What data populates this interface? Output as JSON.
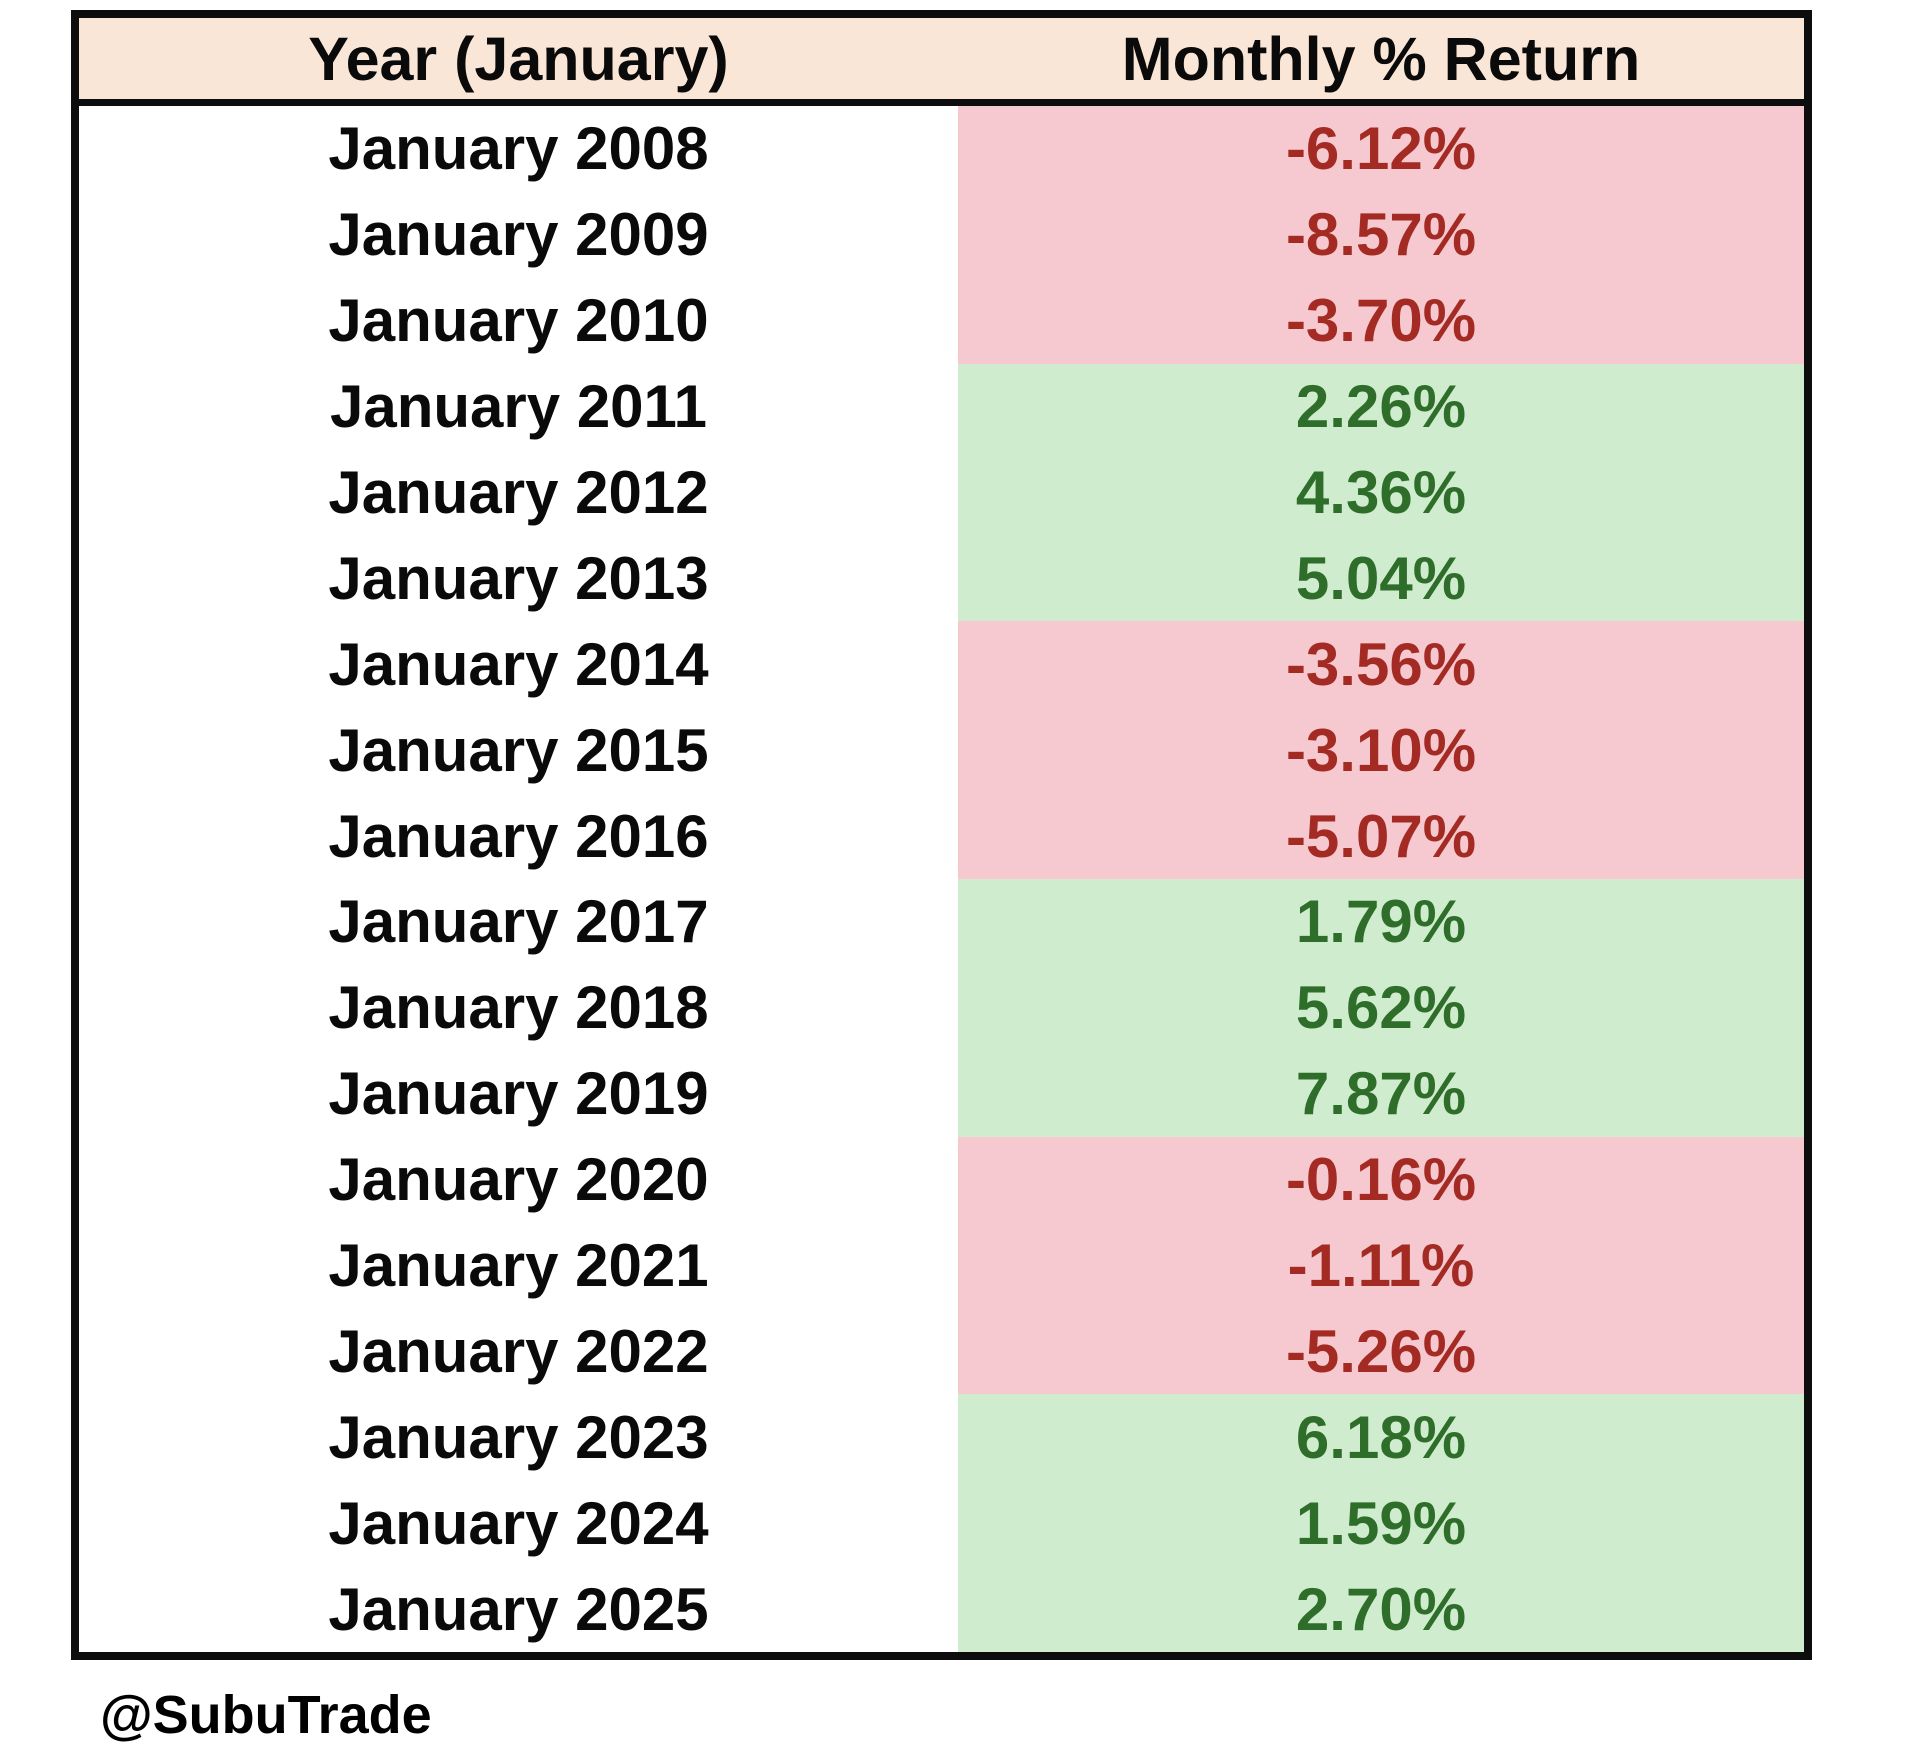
{
  "table": {
    "headers": {
      "year": "Year (January)",
      "return": "Monthly % Return"
    },
    "rows": [
      {
        "year": "January 2008",
        "return": "-6.12%",
        "direction": "negative"
      },
      {
        "year": "January 2009",
        "return": "-8.57%",
        "direction": "negative"
      },
      {
        "year": "January 2010",
        "return": "-3.70%",
        "direction": "negative"
      },
      {
        "year": "January 2011",
        "return": "2.26%",
        "direction": "positive"
      },
      {
        "year": "January 2012",
        "return": "4.36%",
        "direction": "positive"
      },
      {
        "year": "January 2013",
        "return": "5.04%",
        "direction": "positive"
      },
      {
        "year": "January 2014",
        "return": "-3.56%",
        "direction": "negative"
      },
      {
        "year": "January 2015",
        "return": "-3.10%",
        "direction": "negative"
      },
      {
        "year": "January 2016",
        "return": "-5.07%",
        "direction": "negative"
      },
      {
        "year": "January 2017",
        "return": "1.79%",
        "direction": "positive"
      },
      {
        "year": "January 2018",
        "return": "5.62%",
        "direction": "positive"
      },
      {
        "year": "January 2019",
        "return": "7.87%",
        "direction": "positive"
      },
      {
        "year": "January 2020",
        "return": "-0.16%",
        "direction": "negative"
      },
      {
        "year": "January 2021",
        "return": "-1.11%",
        "direction": "negative"
      },
      {
        "year": "January 2022",
        "return": "-5.26%",
        "direction": "negative"
      },
      {
        "year": "January 2023",
        "return": "6.18%",
        "direction": "positive"
      },
      {
        "year": "January 2024",
        "return": "1.59%",
        "direction": "positive"
      },
      {
        "year": "January 2025",
        "return": "2.70%",
        "direction": "positive"
      }
    ]
  },
  "footer": {
    "handle": "@SubuTrade"
  },
  "colors": {
    "header_bg": "#FAE6D6",
    "negative_bg": "#F6C8CF",
    "positive_bg": "#D0ECCF",
    "negative_text": "#A32B24",
    "positive_text": "#2F6E2A",
    "border": "#0D0D0D",
    "text": "#0A0A0A"
  },
  "chart_data": {
    "type": "table",
    "title": "",
    "columns": [
      "Year (January)",
      "Monthly % Return"
    ],
    "categories": [
      "January 2008",
      "January 2009",
      "January 2010",
      "January 2011",
      "January 2012",
      "January 2013",
      "January 2014",
      "January 2015",
      "January 2016",
      "January 2017",
      "January 2018",
      "January 2019",
      "January 2020",
      "January 2021",
      "January 2022",
      "January 2023",
      "January 2024",
      "January 2025"
    ],
    "values": [
      -6.12,
      -8.57,
      -3.7,
      2.26,
      4.36,
      5.04,
      -3.56,
      -3.1,
      -5.07,
      1.79,
      5.62,
      7.87,
      -0.16,
      -1.11,
      -5.26,
      6.18,
      1.59,
      2.7
    ],
    "value_unit": "percent",
    "annotations": [
      "@SubuTrade"
    ],
    "legend_position": "none",
    "grid": false
  }
}
